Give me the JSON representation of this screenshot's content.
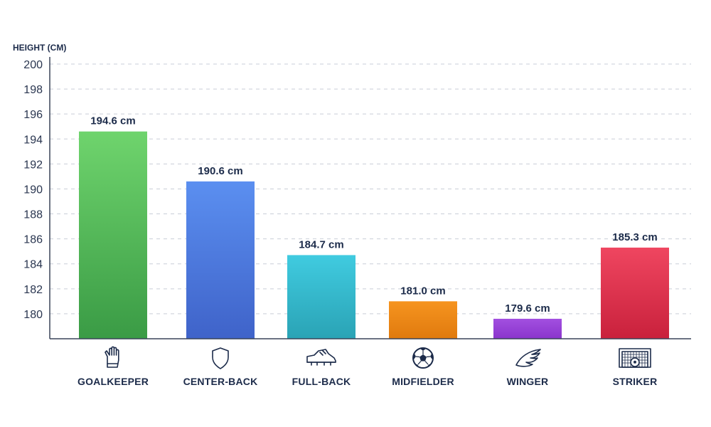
{
  "chart_data": {
    "type": "bar",
    "ylabel": "HEIGHT (CM)",
    "ylim": [
      178,
      200
    ],
    "yticks": [
      180,
      182,
      184,
      186,
      188,
      190,
      192,
      194,
      196,
      198,
      200
    ],
    "grid": true,
    "categories": [
      "GOALKEEPER",
      "CENTER-BACK",
      "FULL-BACK",
      "MIDFIELDER",
      "WINGER",
      "STRIKER"
    ],
    "values": [
      194.6,
      190.6,
      184.7,
      181.0,
      179.6,
      185.3
    ],
    "value_labels": [
      "194.6 cm",
      "190.6 cm",
      "184.7 cm",
      "181.0 cm",
      "179.6 cm",
      "185.3 cm"
    ],
    "bar_colors": [
      [
        "#6fd46d",
        "#3a9b45"
      ],
      [
        "#5b8ff0",
        "#3f63c9"
      ],
      [
        "#40cbe0",
        "#2aa3b5"
      ],
      [
        "#f6941f",
        "#e07a0e"
      ],
      [
        "#a24fe0",
        "#8a35cc"
      ],
      [
        "#ef4660",
        "#c9213c"
      ]
    ],
    "icons": [
      "goalkeeper-glove-icon",
      "shield-icon",
      "football-boot-icon",
      "soccer-ball-icon",
      "wing-icon",
      "goal-net-icon"
    ]
  }
}
